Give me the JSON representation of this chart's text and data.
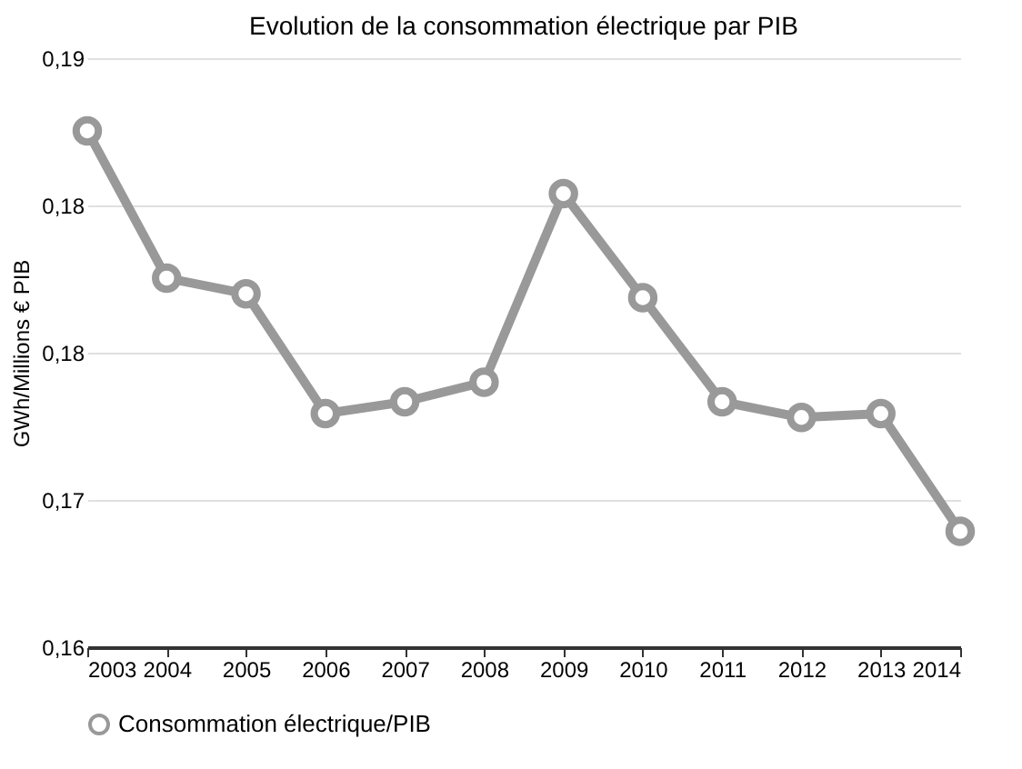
{
  "chart_data": {
    "type": "line",
    "title": "Evolution de la consommation électrique par PIB",
    "ylabel": "GWh/Millions € PIB",
    "categories": [
      "2003",
      "2004",
      "2005",
      "2006",
      "2007",
      "2008",
      "2009",
      "2010",
      "2011",
      "2012",
      "2013",
      "2014"
    ],
    "series": [
      {
        "name": "Consommation électrique/PIB",
        "color": "#999999",
        "values": [
          0.1863,
          0.1788,
          0.178,
          0.1719,
          0.1725,
          0.1735,
          0.1831,
          0.1778,
          0.1725,
          0.1717,
          0.1719,
          0.1659
        ]
      }
    ],
    "ylim": [
      0.16,
      0.19
    ],
    "yticks": [
      {
        "value": 0.16,
        "label": "0,16"
      },
      {
        "value": 0.1675,
        "label": "0,17"
      },
      {
        "value": 0.175,
        "label": "0,18"
      },
      {
        "value": 0.1825,
        "label": "0,18"
      },
      {
        "value": 0.19,
        "label": "0,19"
      }
    ],
    "grid": "y",
    "legend": "bottom",
    "marker": "circle",
    "line_style": "solid"
  }
}
